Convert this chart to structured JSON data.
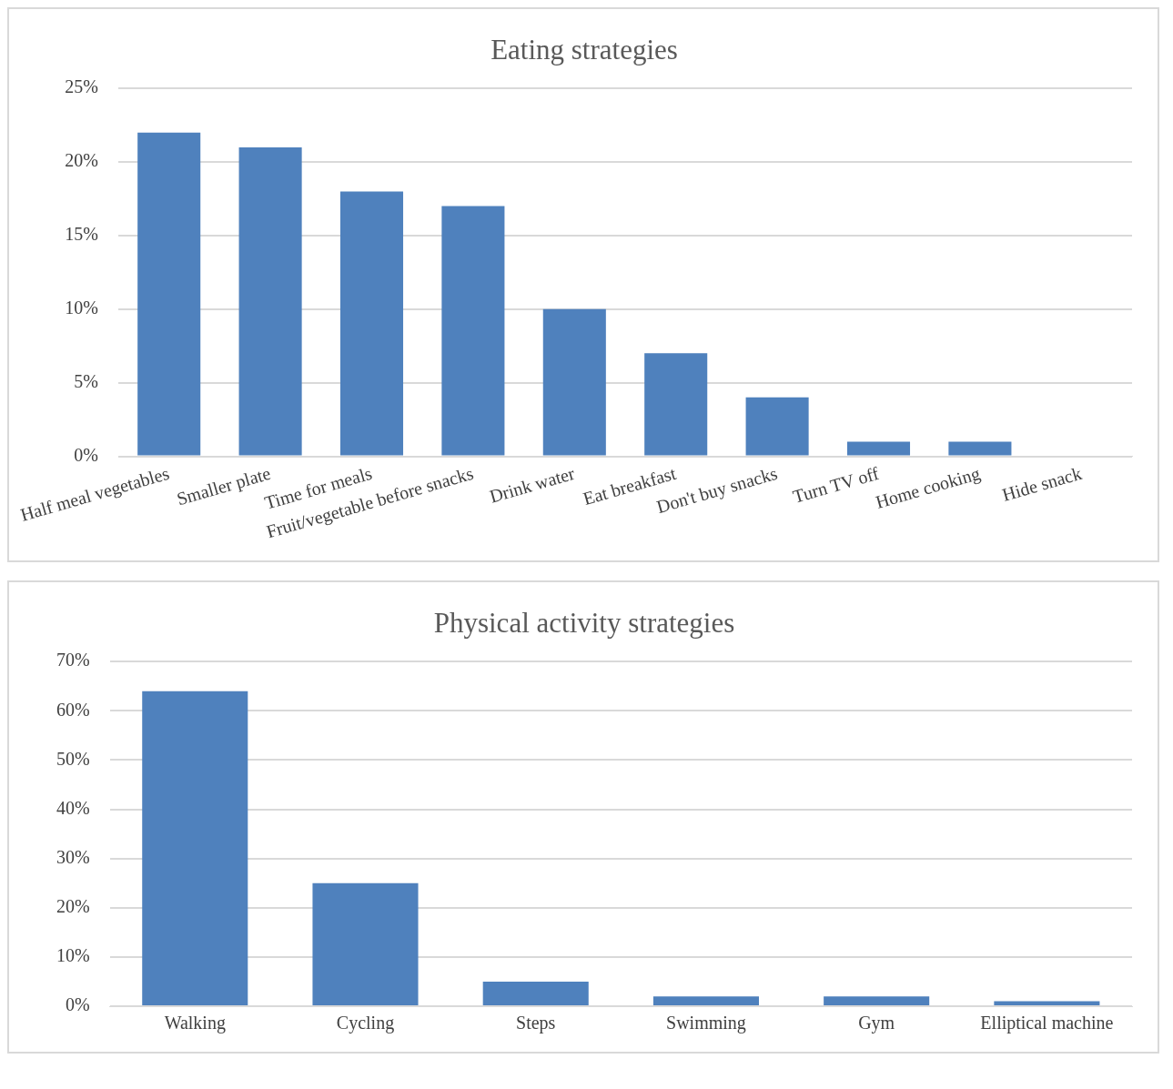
{
  "chart_data": [
    {
      "type": "bar",
      "title": "Eating strategies",
      "categories": [
        "Half meal vegetables",
        "Smaller plate",
        "Time for meals",
        "Fruit/vegetable before snacks",
        "Drink water",
        "Eat breakfast",
        "Don't buy snacks",
        "Turn TV off",
        "Home cooking",
        "Hide snack"
      ],
      "values": [
        22,
        21,
        18,
        17,
        10,
        7,
        4,
        1,
        1,
        0
      ],
      "color": "#4f81bd",
      "ylim": [
        0,
        25
      ],
      "yticks": [
        {
          "value": 0,
          "label": "0%"
        },
        {
          "value": 5,
          "label": "5%"
        },
        {
          "value": 10,
          "label": "10%"
        },
        {
          "value": 15,
          "label": "15%"
        },
        {
          "value": 20,
          "label": "20%"
        },
        {
          "value": 25,
          "label": "25%"
        }
      ],
      "grid": "y",
      "legend": false
    },
    {
      "type": "bar",
      "title": "Physical activity strategies",
      "categories": [
        "Walking",
        "Cycling",
        "Steps",
        "Swimming",
        "Gym",
        "Elliptical machine"
      ],
      "values": [
        64,
        25,
        5,
        2,
        2,
        1
      ],
      "color": "#4f81bd",
      "ylim": [
        0,
        70
      ],
      "yticks": [
        {
          "value": 0,
          "label": "0%"
        },
        {
          "value": 10,
          "label": "10%"
        },
        {
          "value": 20,
          "label": "20%"
        },
        {
          "value": 30,
          "label": "30%"
        },
        {
          "value": 40,
          "label": "40%"
        },
        {
          "value": 50,
          "label": "50%"
        },
        {
          "value": 60,
          "label": "60%"
        },
        {
          "value": 70,
          "label": "70%"
        }
      ],
      "grid": "y",
      "legend": false
    }
  ]
}
